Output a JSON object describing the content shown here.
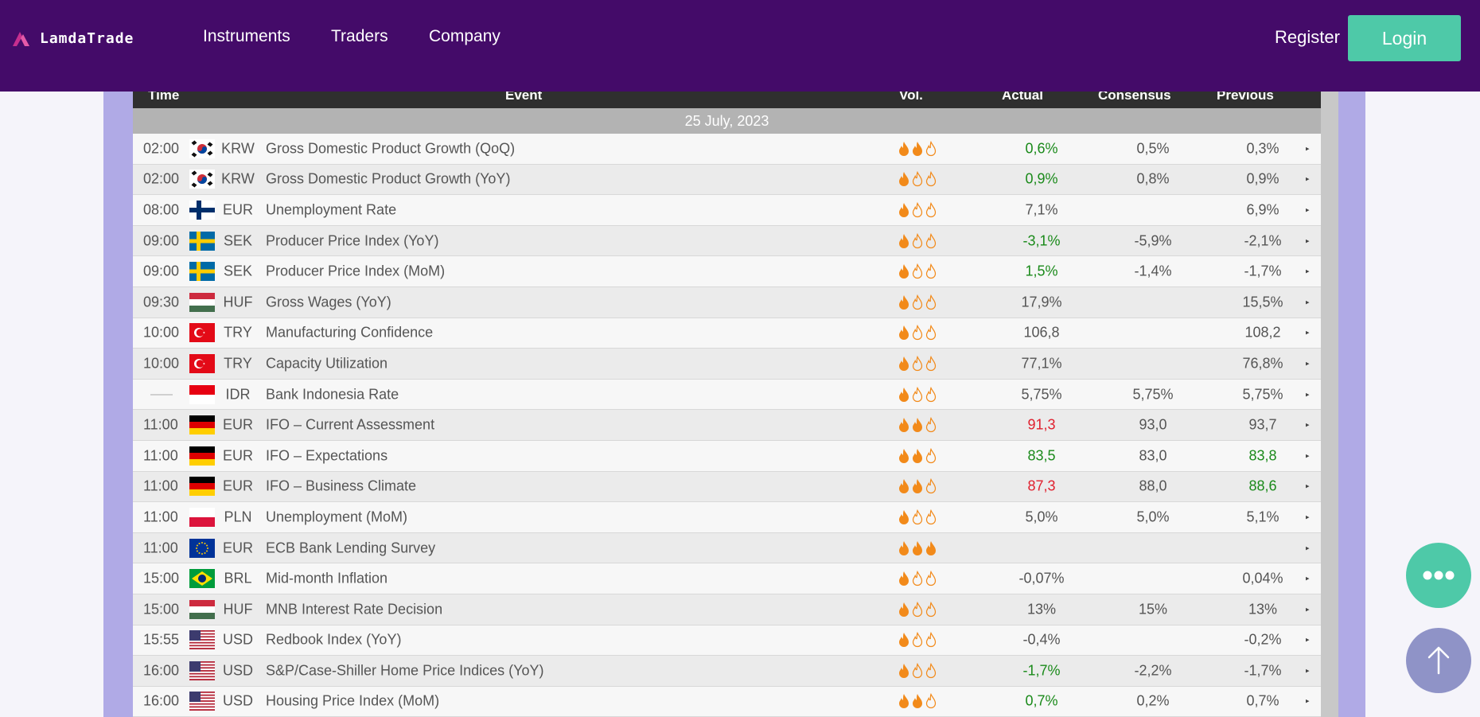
{
  "nav": {
    "brand": "LamdaTrade",
    "links": [
      "Instruments",
      "Traders",
      "Company"
    ],
    "register": "Register",
    "login": "Login"
  },
  "table": {
    "headers": {
      "time": "Time",
      "event": "Event",
      "vol": "Vol.",
      "actual": "Actual",
      "consensus": "Consensus",
      "previous": "Previous"
    },
    "date": "25 July, 2023",
    "rows": [
      {
        "time": "02:00",
        "flag": "kr",
        "currency": "KRW",
        "event": "Gross Domestic Product Growth (QoQ)",
        "vol": 2,
        "actual": "0,6%",
        "actual_state": "pos",
        "consensus": "0,5%",
        "previous": "0,3%",
        "previous_state": ""
      },
      {
        "time": "02:00",
        "flag": "kr",
        "currency": "KRW",
        "event": "Gross Domestic Product Growth (YoY)",
        "vol": 1,
        "actual": "0,9%",
        "actual_state": "pos",
        "consensus": "0,8%",
        "previous": "0,9%",
        "previous_state": ""
      },
      {
        "time": "08:00",
        "flag": "fi",
        "currency": "EUR",
        "event": "Unemployment Rate",
        "vol": 1,
        "actual": "7,1%",
        "actual_state": "",
        "consensus": "",
        "previous": "6,9%",
        "previous_state": ""
      },
      {
        "time": "09:00",
        "flag": "se",
        "currency": "SEK",
        "event": "Producer Price Index (YoY)",
        "vol": 1,
        "actual": "-3,1%",
        "actual_state": "pos",
        "consensus": "-5,9%",
        "previous": "-2,1%",
        "previous_state": ""
      },
      {
        "time": "09:00",
        "flag": "se",
        "currency": "SEK",
        "event": "Producer Price Index (MoM)",
        "vol": 1,
        "actual": "1,5%",
        "actual_state": "pos",
        "consensus": "-1,4%",
        "previous": "-1,7%",
        "previous_state": ""
      },
      {
        "time": "09:30",
        "flag": "hu",
        "currency": "HUF",
        "event": "Gross Wages (YoY)",
        "vol": 1,
        "actual": "17,9%",
        "actual_state": "",
        "consensus": "",
        "previous": "15,5%",
        "previous_state": ""
      },
      {
        "time": "10:00",
        "flag": "tr",
        "currency": "TRY",
        "event": "Manufacturing Confidence",
        "vol": 1,
        "actual": "106,8",
        "actual_state": "",
        "consensus": "",
        "previous": "108,2",
        "previous_state": ""
      },
      {
        "time": "10:00",
        "flag": "tr",
        "currency": "TRY",
        "event": "Capacity Utilization",
        "vol": 1,
        "actual": "77,1%",
        "actual_state": "",
        "consensus": "",
        "previous": "76,8%",
        "previous_state": ""
      },
      {
        "time": "",
        "flag": "id",
        "currency": "IDR",
        "event": "Bank Indonesia Rate",
        "vol": 1,
        "actual": "5,75%",
        "actual_state": "",
        "consensus": "5,75%",
        "previous": "5,75%",
        "previous_state": ""
      },
      {
        "time": "11:00",
        "flag": "de",
        "currency": "EUR",
        "event": "IFO – Current Assessment",
        "vol": 2,
        "actual": "91,3",
        "actual_state": "neg",
        "consensus": "93,0",
        "previous": "93,7",
        "previous_state": ""
      },
      {
        "time": "11:00",
        "flag": "de",
        "currency": "EUR",
        "event": "IFO – Expectations",
        "vol": 2,
        "actual": "83,5",
        "actual_state": "pos",
        "consensus": "83,0",
        "previous": "83,8",
        "previous_state": "pos"
      },
      {
        "time": "11:00",
        "flag": "de",
        "currency": "EUR",
        "event": "IFO – Business Climate",
        "vol": 2,
        "actual": "87,3",
        "actual_state": "neg",
        "consensus": "88,0",
        "previous": "88,6",
        "previous_state": "pos"
      },
      {
        "time": "11:00",
        "flag": "pl",
        "currency": "PLN",
        "event": "Unemployment (MoM)",
        "vol": 1,
        "actual": "5,0%",
        "actual_state": "",
        "consensus": "5,0%",
        "previous": "5,1%",
        "previous_state": ""
      },
      {
        "time": "11:00",
        "flag": "eu",
        "currency": "EUR",
        "event": "ECB Bank Lending Survey",
        "vol": 3,
        "actual": "",
        "actual_state": "",
        "consensus": "",
        "previous": "",
        "previous_state": ""
      },
      {
        "time": "15:00",
        "flag": "br",
        "currency": "BRL",
        "event": "Mid-month Inflation",
        "vol": 1,
        "actual": "-0,07%",
        "actual_state": "",
        "consensus": "",
        "previous": "0,04%",
        "previous_state": ""
      },
      {
        "time": "15:00",
        "flag": "hu",
        "currency": "HUF",
        "event": "MNB Interest Rate Decision",
        "vol": 1,
        "actual": "13%",
        "actual_state": "",
        "consensus": "15%",
        "previous": "13%",
        "previous_state": ""
      },
      {
        "time": "15:55",
        "flag": "us",
        "currency": "USD",
        "event": "Redbook Index (YoY)",
        "vol": 1,
        "actual": "-0,4%",
        "actual_state": "",
        "consensus": "",
        "previous": "-0,2%",
        "previous_state": ""
      },
      {
        "time": "16:00",
        "flag": "us",
        "currency": "USD",
        "event": "S&P/Case-Shiller Home Price Indices (YoY)",
        "vol": 1,
        "actual": "-1,7%",
        "actual_state": "pos",
        "consensus": "-2,2%",
        "previous": "-1,7%",
        "previous_state": ""
      },
      {
        "time": "16:00",
        "flag": "us",
        "currency": "USD",
        "event": "Housing Price Index (MoM)",
        "vol": 2,
        "actual": "0,7%",
        "actual_state": "pos",
        "consensus": "0,2%",
        "previous": "0,7%",
        "previous_state": ""
      }
    ]
  },
  "colors": {
    "nav_bg": "#440b69",
    "login_bg": "#4ec9a8",
    "positive": "#1a8a1a",
    "negative": "#e0202e",
    "flame": "#f28a1a"
  },
  "icons": {
    "chat": "chat-bubble-icon",
    "scroll_top": "arrow-up-icon",
    "volatility": "flame-icon",
    "expand": "caret-right-icon"
  }
}
